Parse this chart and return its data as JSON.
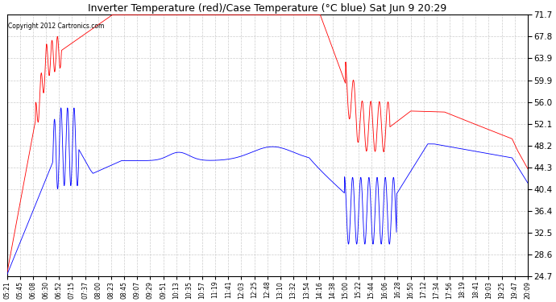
{
  "title": "Inverter Temperature (red)/Case Temperature (°C blue) Sat Jun 9 20:29",
  "copyright": "Copyright 2012 Cartronics.com",
  "ylim": [
    24.7,
    71.7
  ],
  "yticks": [
    24.7,
    28.6,
    32.5,
    36.4,
    40.4,
    44.3,
    48.2,
    52.1,
    56.0,
    59.9,
    63.9,
    67.8,
    71.7
  ],
  "background_color": "#ffffff",
  "grid_color": "#cccccc",
  "red_color": "#ff0000",
  "blue_color": "#0000ff",
  "x_labels": [
    "05:21",
    "05:45",
    "06:08",
    "06:30",
    "06:52",
    "07:15",
    "07:37",
    "08:00",
    "08:23",
    "08:45",
    "09:07",
    "09:29",
    "09:51",
    "10:13",
    "10:35",
    "10:57",
    "11:19",
    "11:41",
    "12:03",
    "12:25",
    "12:48",
    "13:10",
    "13:32",
    "13:54",
    "14:16",
    "14:38",
    "15:00",
    "15:22",
    "15:44",
    "16:06",
    "16:28",
    "16:50",
    "17:12",
    "17:34",
    "17:56",
    "18:19",
    "18:41",
    "19:03",
    "19:25",
    "19:47",
    "20:09"
  ]
}
